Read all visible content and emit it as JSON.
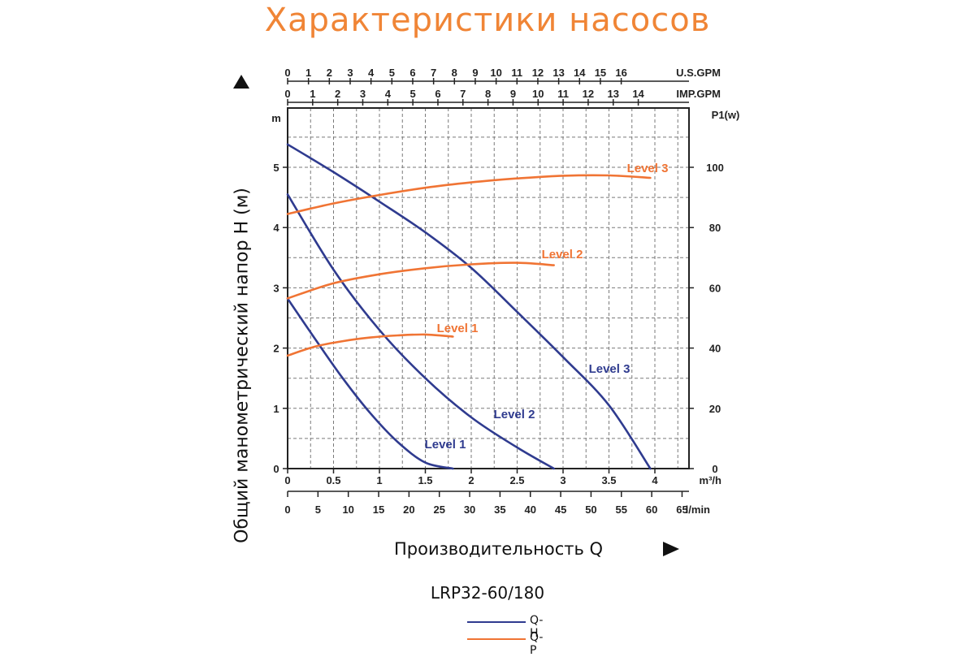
{
  "title": "Характеристики насосов",
  "ylabel": "Общий манометрический напор H (м)",
  "xlabel": "Производительность Q",
  "model": "LRP32-60/180",
  "legend": [
    {
      "label": "Q-H",
      "color": "#2f3b8f"
    },
    {
      "label": "Q-P",
      "color": "#f07434"
    }
  ],
  "chart_data": {
    "type": "line",
    "colors": {
      "qh": "#2f3b8f",
      "qp": "#f07434",
      "grid": "#7a7a7a",
      "frame": "#222222"
    },
    "grid": true,
    "x_axis": {
      "unit": "m³/h",
      "range": [
        0,
        4.3
      ],
      "ticks": [
        "0",
        "0.5",
        "1",
        "1.5",
        "2",
        "2.5",
        "3",
        "3.5",
        "4"
      ],
      "tick_values": [
        0,
        0.5,
        1,
        1.5,
        2,
        2.5,
        3,
        3.5,
        4
      ]
    },
    "x_axis_lmin": {
      "unit": "l/min",
      "ticks": [
        "0",
        "5",
        "10",
        "15",
        "20",
        "25",
        "30",
        "35",
        "40",
        "45",
        "50",
        "55",
        "60",
        "65"
      ],
      "tick_values": [
        0,
        5,
        10,
        15,
        20,
        25,
        30,
        35,
        40,
        45,
        50,
        55,
        60,
        65
      ]
    },
    "x_axis_usgpm": {
      "unit": "U.S.GPM",
      "ticks": [
        "0",
        "1",
        "2",
        "3",
        "4",
        "5",
        "6",
        "7",
        "8",
        "9",
        "10",
        "11",
        "12",
        "13",
        "14",
        "15",
        "16"
      ],
      "tick_values": [
        0,
        1,
        2,
        3,
        4,
        5,
        6,
        7,
        8,
        9,
        10,
        11,
        12,
        13,
        14,
        15,
        16
      ]
    },
    "x_axis_impgpm": {
      "unit": "IMP.GPM",
      "ticks": [
        "0",
        "1",
        "2",
        "3",
        "4",
        "5",
        "6",
        "7",
        "8",
        "9",
        "10",
        "11",
        "12",
        "13",
        "14"
      ],
      "tick_values": [
        0,
        1,
        2,
        3,
        4,
        5,
        6,
        7,
        8,
        9,
        10,
        11,
        12,
        13,
        14
      ]
    },
    "y_axis_left": {
      "unit": "m",
      "range": [
        0,
        5.8
      ],
      "ticks": [
        "0",
        "1",
        "2",
        "3",
        "4",
        "5"
      ],
      "tick_values": [
        0,
        1,
        2,
        3,
        4,
        5
      ]
    },
    "y_axis_right": {
      "unit": "P1(w)",
      "range": [
        0,
        116
      ],
      "ticks": [
        "0",
        "20",
        "40",
        "60",
        "80",
        "100"
      ],
      "tick_values": [
        0,
        20,
        40,
        60,
        80,
        100
      ]
    },
    "series": [
      {
        "name": "Level 1",
        "kind": "Q-H",
        "label": "Level 1",
        "x": [
          0,
          0.3,
          0.6,
          0.9,
          1.2,
          1.5,
          1.8
        ],
        "y": [
          2.82,
          2.15,
          1.5,
          0.92,
          0.44,
          0.1,
          0
        ]
      },
      {
        "name": "Level 2",
        "kind": "Q-H",
        "label": "Level 2",
        "x": [
          0,
          0.5,
          1,
          1.5,
          2,
          2.5,
          2.9
        ],
        "y": [
          4.55,
          3.3,
          2.3,
          1.5,
          0.85,
          0.35,
          0
        ]
      },
      {
        "name": "Level 3",
        "kind": "Q-H",
        "label": "Level 3",
        "x": [
          0,
          0.5,
          1,
          1.5,
          2,
          2.5,
          3,
          3.5,
          3.95
        ],
        "y": [
          5.38,
          4.92,
          4.43,
          3.92,
          3.33,
          2.6,
          1.85,
          1.05,
          0
        ]
      },
      {
        "name": "Level 1",
        "kind": "Q-P",
        "label": "Level 1",
        "x": [
          0,
          0.3,
          0.6,
          0.9,
          1.2,
          1.5,
          1.8
        ],
        "y": [
          37.5,
          40.5,
          42.3,
          43.5,
          44.2,
          44.5,
          43.8
        ]
      },
      {
        "name": "Level 2",
        "kind": "Q-P",
        "label": "Level 2",
        "x": [
          0,
          0.5,
          1,
          1.5,
          2,
          2.5,
          2.9
        ],
        "y": [
          56.5,
          61.5,
          64.5,
          66.5,
          67.8,
          68.3,
          67.5
        ]
      },
      {
        "name": "Level 3",
        "kind": "Q-P",
        "label": "Level 3",
        "x": [
          0,
          0.5,
          1,
          1.5,
          2,
          2.5,
          3,
          3.5,
          3.95
        ],
        "y": [
          84.5,
          88,
          90.8,
          93.2,
          95,
          96.3,
          97.2,
          97.3,
          96.5
        ]
      }
    ]
  }
}
